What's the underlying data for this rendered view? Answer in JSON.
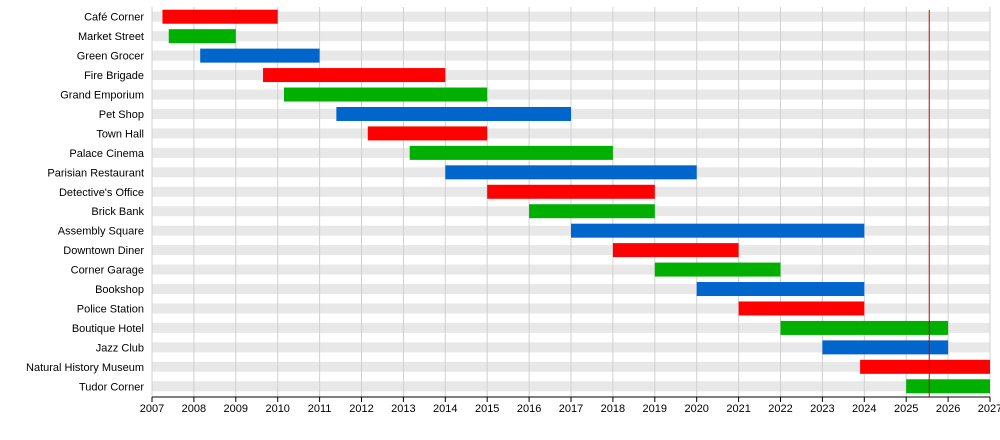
{
  "chart_data": {
    "type": "bar",
    "orientation": "horizontal-timeline",
    "title": "",
    "xlabel": "",
    "ylabel": "",
    "xlim": [
      2007,
      2027
    ],
    "x_ticks": [
      "2007",
      "2008",
      "2009",
      "2010",
      "2011",
      "2012",
      "2013",
      "2014",
      "2015",
      "2016",
      "2017",
      "2018",
      "2019",
      "2020",
      "2021",
      "2022",
      "2023",
      "2024",
      "2025",
      "2026",
      "2027"
    ],
    "grid": true,
    "legend": "none",
    "colors": {
      "red": "#ff0000",
      "green": "#00b000",
      "blue": "#0066cc",
      "marker": "#cc0000"
    },
    "marker_x": 2025.55,
    "items": [
      {
        "label": "Café Corner",
        "start": 2007.25,
        "end": 2010.0,
        "color": "red"
      },
      {
        "label": "Market Street",
        "start": 2007.4,
        "end": 2009.0,
        "color": "green"
      },
      {
        "label": "Green Grocer",
        "start": 2008.15,
        "end": 2011.0,
        "color": "blue"
      },
      {
        "label": "Fire Brigade",
        "start": 2009.65,
        "end": 2014.0,
        "color": "red"
      },
      {
        "label": "Grand Emporium",
        "start": 2010.15,
        "end": 2015.0,
        "color": "green"
      },
      {
        "label": "Pet Shop",
        "start": 2011.4,
        "end": 2017.0,
        "color": "blue"
      },
      {
        "label": "Town Hall",
        "start": 2012.15,
        "end": 2015.0,
        "color": "red"
      },
      {
        "label": "Palace Cinema",
        "start": 2013.15,
        "end": 2018.0,
        "color": "green"
      },
      {
        "label": "Parisian Restaurant",
        "start": 2014.0,
        "end": 2020.0,
        "color": "blue"
      },
      {
        "label": "Detective's Office",
        "start": 2015.0,
        "end": 2019.0,
        "color": "red"
      },
      {
        "label": "Brick Bank",
        "start": 2016.0,
        "end": 2019.0,
        "color": "green"
      },
      {
        "label": "Assembly Square",
        "start": 2017.0,
        "end": 2024.0,
        "color": "blue"
      },
      {
        "label": "Downtown Diner",
        "start": 2018.0,
        "end": 2021.0,
        "color": "red"
      },
      {
        "label": "Corner Garage",
        "start": 2019.0,
        "end": 2022.0,
        "color": "green"
      },
      {
        "label": "Bookshop",
        "start": 2020.0,
        "end": 2024.0,
        "color": "blue"
      },
      {
        "label": "Police Station",
        "start": 2021.0,
        "end": 2024.0,
        "color": "red"
      },
      {
        "label": "Boutique Hotel",
        "start": 2022.0,
        "end": 2026.0,
        "color": "green"
      },
      {
        "label": "Jazz Club",
        "start": 2023.0,
        "end": 2026.0,
        "color": "blue"
      },
      {
        "label": "Natural History Museum",
        "start": 2023.9,
        "end": 2027.0,
        "color": "red"
      },
      {
        "label": "Tudor Corner",
        "start": 2025.0,
        "end": 2027.0,
        "color": "green"
      }
    ]
  }
}
